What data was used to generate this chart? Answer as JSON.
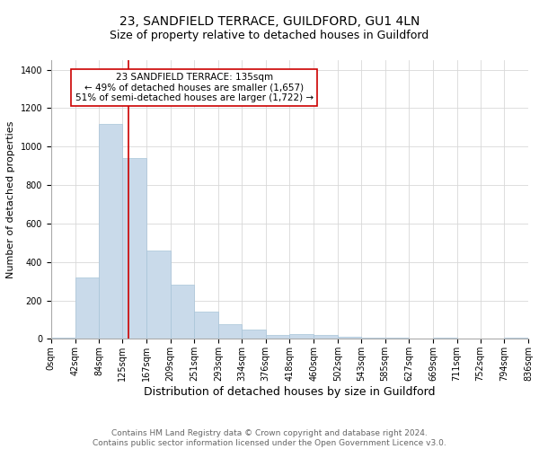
{
  "title": "23, SANDFIELD TERRACE, GUILDFORD, GU1 4LN",
  "subtitle": "Size of property relative to detached houses in Guildford",
  "xlabel": "Distribution of detached houses by size in Guildford",
  "ylabel": "Number of detached properties",
  "footer_line1": "Contains HM Land Registry data © Crown copyright and database right 2024.",
  "footer_line2": "Contains public sector information licensed under the Open Government Licence v3.0.",
  "annotation_line1": "23 SANDFIELD TERRACE: 135sqm",
  "annotation_line2": "← 49% of detached houses are smaller (1,657)",
  "annotation_line3": "51% of semi-detached houses are larger (1,722) →",
  "property_size": 135,
  "bin_edges": [
    0,
    42,
    84,
    125,
    167,
    209,
    251,
    293,
    334,
    376,
    418,
    460,
    502,
    543,
    585,
    627,
    669,
    711,
    752,
    794,
    836
  ],
  "bar_heights": [
    5,
    320,
    1120,
    940,
    460,
    280,
    140,
    75,
    50,
    20,
    25,
    20,
    10,
    5,
    5,
    3,
    8,
    2,
    3,
    5
  ],
  "bar_color": "#c9daea",
  "bar_edgecolor": "#a8c4d8",
  "vline_color": "#cc0000",
  "annotation_box_edgecolor": "#cc0000",
  "ylim": [
    0,
    1450
  ],
  "yticks": [
    0,
    200,
    400,
    600,
    800,
    1000,
    1200,
    1400
  ],
  "background_color": "#ffffff",
  "grid_color": "#d8d8d8",
  "title_fontsize": 10,
  "subtitle_fontsize": 9,
  "xlabel_fontsize": 9,
  "ylabel_fontsize": 8,
  "footer_fontsize": 6.5,
  "annotation_fontsize": 7.5,
  "tick_fontsize": 7
}
